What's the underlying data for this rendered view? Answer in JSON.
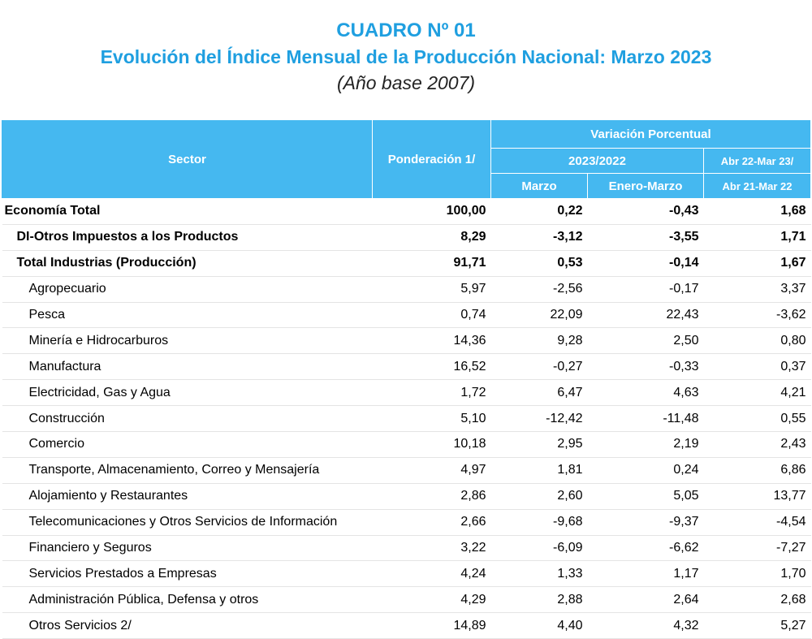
{
  "title": {
    "line1": "CUADRO Nº 01",
    "line2": "Evolución del Índice Mensual de la Producción Nacional: Marzo 2023",
    "line3": "(Año base 2007)"
  },
  "header": {
    "sector": "Sector",
    "ponderacion": "Ponderación 1/",
    "variacion": "Variación Porcentual",
    "periodo": "2023/2022",
    "marzo": "Marzo",
    "enero_marzo": "Enero-Marzo",
    "anual_line1": "Abr 22-Mar 23/",
    "anual_line2": "Abr 21-Mar 22"
  },
  "rows": [
    {
      "sector": "Economía Total",
      "ponderacion": "100,00",
      "marzo": "0,22",
      "enero_marzo": "-0,43",
      "anual": "1,68",
      "level": 0,
      "bold": true
    },
    {
      "sector": "DI-Otros Impuestos a los Productos",
      "ponderacion": "8,29",
      "marzo": "-3,12",
      "enero_marzo": "-3,55",
      "anual": "1,71",
      "level": 1,
      "bold": true
    },
    {
      "sector": "Total  Industrias (Producción)",
      "ponderacion": "91,71",
      "marzo": "0,53",
      "enero_marzo": "-0,14",
      "anual": "1,67",
      "level": 1,
      "bold": true
    },
    {
      "sector": "Agropecuario",
      "ponderacion": "5,97",
      "marzo": "-2,56",
      "enero_marzo": "-0,17",
      "anual": "3,37",
      "level": 2,
      "bold": false
    },
    {
      "sector": "Pesca",
      "ponderacion": "0,74",
      "marzo": "22,09",
      "enero_marzo": "22,43",
      "anual": "-3,62",
      "level": 2,
      "bold": false
    },
    {
      "sector": "Minería e Hidrocarburos",
      "ponderacion": "14,36",
      "marzo": "9,28",
      "enero_marzo": "2,50",
      "anual": "0,80",
      "level": 2,
      "bold": false
    },
    {
      "sector": "Manufactura",
      "ponderacion": "16,52",
      "marzo": "-0,27",
      "enero_marzo": "-0,33",
      "anual": "0,37",
      "level": 2,
      "bold": false
    },
    {
      "sector": "Electricidad, Gas y Agua",
      "ponderacion": "1,72",
      "marzo": "6,47",
      "enero_marzo": "4,63",
      "anual": "4,21",
      "level": 2,
      "bold": false
    },
    {
      "sector": "Construcción",
      "ponderacion": "5,10",
      "marzo": "-12,42",
      "enero_marzo": "-11,48",
      "anual": "0,55",
      "level": 2,
      "bold": false
    },
    {
      "sector": "Comercio",
      "ponderacion": "10,18",
      "marzo": "2,95",
      "enero_marzo": "2,19",
      "anual": "2,43",
      "level": 2,
      "bold": false
    },
    {
      "sector": "Transporte, Almacenamiento, Correo y Mensajería",
      "ponderacion": "4,97",
      "marzo": "1,81",
      "enero_marzo": "0,24",
      "anual": "6,86",
      "level": 2,
      "bold": false
    },
    {
      "sector": "Alojamiento y Restaurantes",
      "ponderacion": "2,86",
      "marzo": "2,60",
      "enero_marzo": "5,05",
      "anual": "13,77",
      "level": 2,
      "bold": false
    },
    {
      "sector": "Telecomunicaciones y Otros Servicios de Información",
      "ponderacion": "2,66",
      "marzo": "-9,68",
      "enero_marzo": "-9,37",
      "anual": "-4,54",
      "level": 2,
      "bold": false
    },
    {
      "sector": "Financiero y Seguros",
      "ponderacion": "3,22",
      "marzo": "-6,09",
      "enero_marzo": "-6,62",
      "anual": "-7,27",
      "level": 2,
      "bold": false
    },
    {
      "sector": "Servicios Prestados a Empresas",
      "ponderacion": "4,24",
      "marzo": "1,33",
      "enero_marzo": "1,17",
      "anual": "1,70",
      "level": 2,
      "bold": false
    },
    {
      "sector": "Administración Pública, Defensa y otros",
      "ponderacion": "4,29",
      "marzo": "2,88",
      "enero_marzo": "2,64",
      "anual": "2,68",
      "level": 2,
      "bold": false
    },
    {
      "sector": "Otros Servicios 2/",
      "ponderacion": "14,89",
      "marzo": "4,40",
      "enero_marzo": "4,32",
      "anual": "5,27",
      "level": 2,
      "bold": false
    }
  ],
  "colors": {
    "title": "#1f9fe0",
    "header_bg": "#45b8f0",
    "header_text": "#ffffff"
  }
}
